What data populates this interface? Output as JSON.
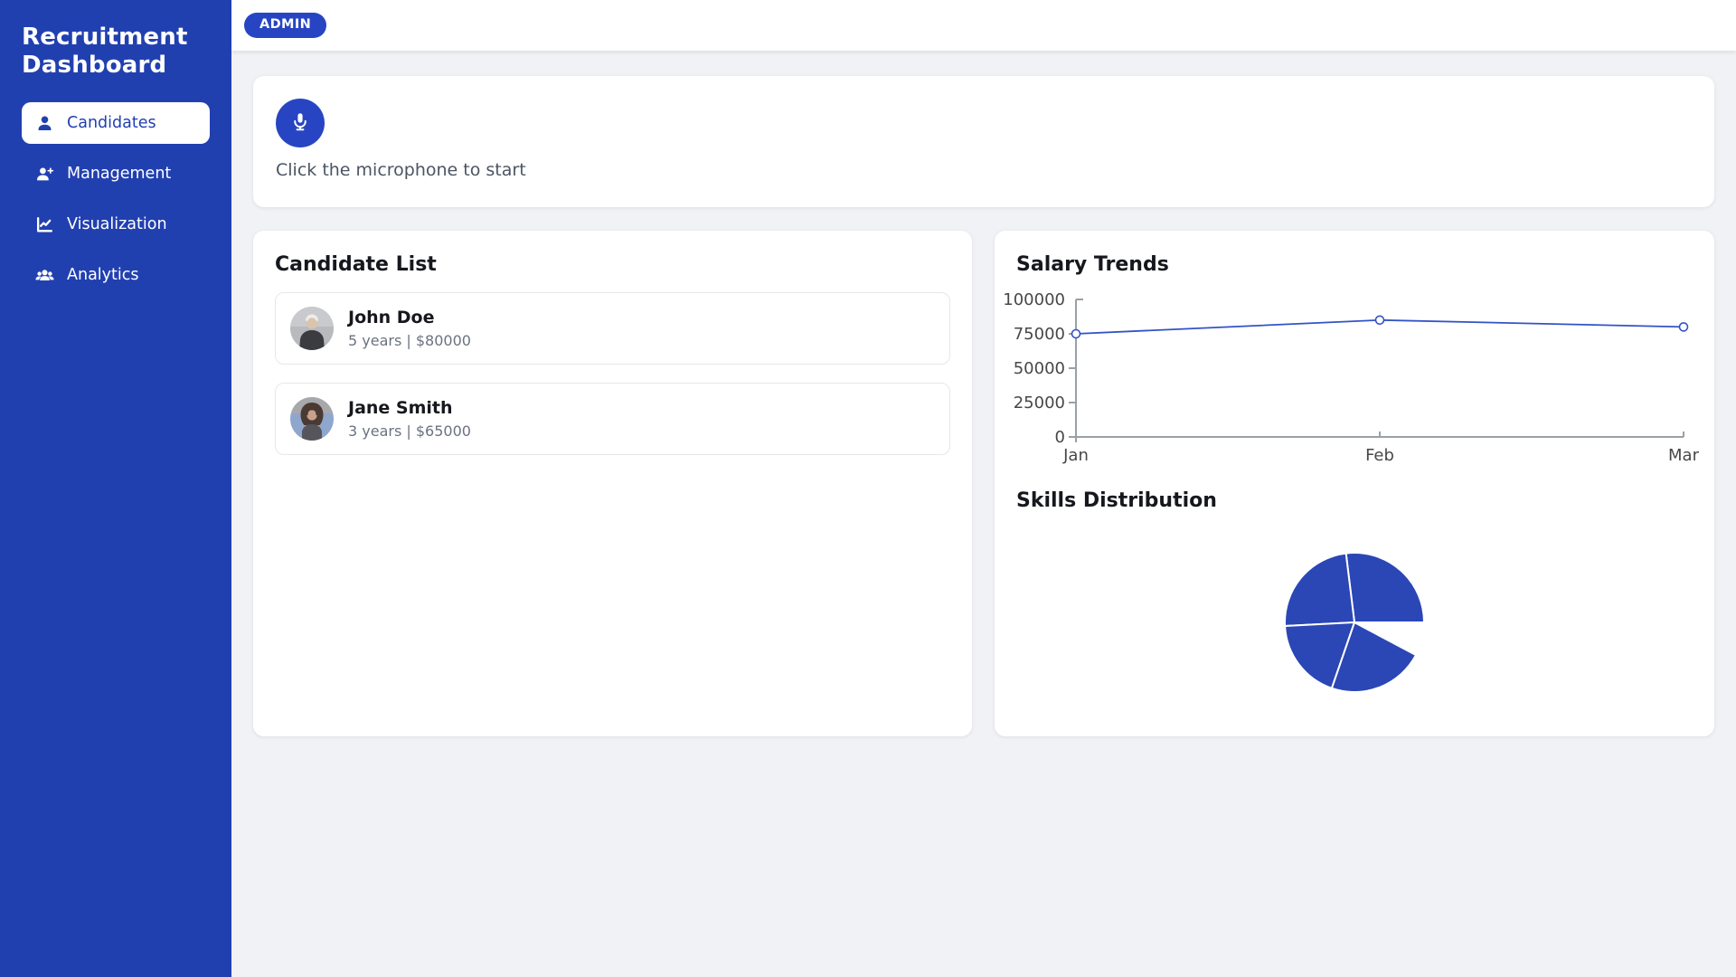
{
  "app": {
    "title": "Recruitment Dashboard"
  },
  "topbar": {
    "badge": "ADMIN"
  },
  "sidebar": {
    "items": [
      {
        "label": "Candidates",
        "icon": "user-icon",
        "active": true
      },
      {
        "label": "Management",
        "icon": "user-plus-icon",
        "active": false
      },
      {
        "label": "Visualization",
        "icon": "chart-line-icon",
        "active": false
      },
      {
        "label": "Analytics",
        "icon": "users-icon",
        "active": false
      }
    ]
  },
  "voice_panel": {
    "icon": "microphone-icon",
    "prompt": "Click the microphone to start"
  },
  "candidate_list": {
    "title": "Candidate List",
    "candidates": [
      {
        "name": "John Doe",
        "details": "5 years | $80000",
        "avatar": "male-portrait-photo"
      },
      {
        "name": "Jane Smith",
        "details": "3 years | $65000",
        "avatar": "female-portrait-photo"
      }
    ]
  },
  "chart_data": [
    {
      "type": "line",
      "title": "Salary Trends",
      "x": [
        "Jan",
        "Feb",
        "Mar"
      ],
      "values": [
        75000,
        85000,
        80000
      ],
      "ylim": [
        0,
        100000
      ],
      "yticks": [
        0,
        25000,
        50000,
        75000,
        100000
      ],
      "grid": false,
      "legend": "none",
      "marker": "open-circle",
      "line_color": "#3353c6",
      "axis_color": "#9aa0a6"
    },
    {
      "type": "pie",
      "title": "Skills Distribution",
      "labels": "none",
      "color": "#2b46b5",
      "segments_deg": [
        {
          "start": 0,
          "end": 97
        },
        {
          "start": 97,
          "end": 183
        },
        {
          "start": 183,
          "end": 251
        },
        {
          "start": 251,
          "end": 332
        }
      ],
      "gap_deg": {
        "start": 332,
        "end": 360
      }
    }
  ],
  "colors": {
    "sidebar": "#2140b0",
    "accent": "#2745c2",
    "pie": "#2b46b5",
    "line": "#3353c6"
  }
}
